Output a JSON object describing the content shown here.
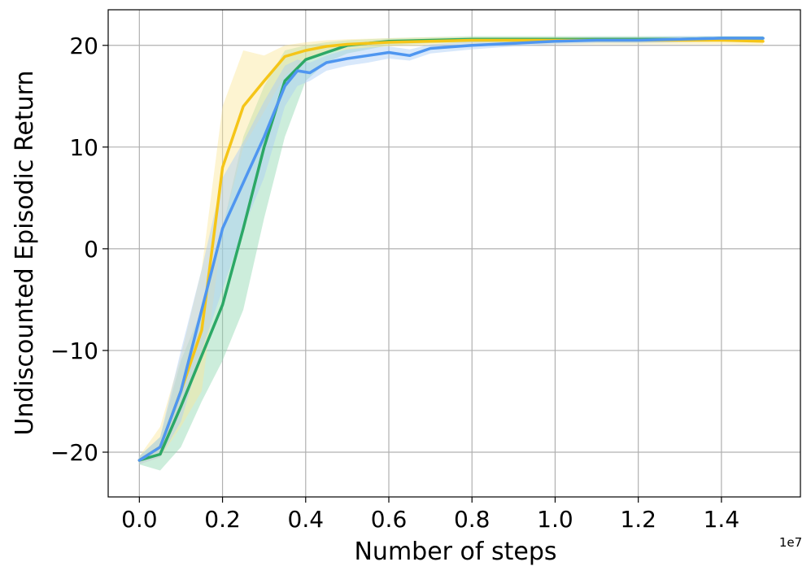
{
  "chart_data": {
    "type": "line",
    "title": "",
    "xlabel": "Number of steps",
    "ylabel": "Undiscounted Episodic Return",
    "x_offset_label": "1e7",
    "xlim": [
      -0.075,
      1.59
    ],
    "ylim": [
      -24.4,
      23.5
    ],
    "xticks": [
      0.0,
      0.2,
      0.4,
      0.6,
      0.8,
      1.0,
      1.2,
      1.4
    ],
    "xtick_labels": [
      "0.0",
      "0.2",
      "0.4",
      "0.6",
      "0.8",
      "1.0",
      "1.2",
      "1.4"
    ],
    "yticks": [
      -20,
      -10,
      0,
      10,
      20
    ],
    "ytick_labels": [
      "−20",
      "−10",
      "0",
      "10",
      "20"
    ],
    "grid": true,
    "legend": "none",
    "series": [
      {
        "color": "#2ca866",
        "band_color": "#8fd8b0",
        "x": [
          0.0,
          0.05,
          0.1,
          0.15,
          0.2,
          0.25,
          0.3,
          0.35,
          0.4,
          0.45,
          0.5,
          0.6,
          0.7,
          0.8,
          0.9,
          1.0,
          1.1,
          1.2,
          1.3,
          1.4,
          1.5
        ],
        "y": [
          -20.8,
          -20.2,
          -15.5,
          -10.5,
          -5.5,
          2.0,
          10.0,
          16.5,
          18.6,
          19.3,
          20.0,
          20.4,
          20.5,
          20.6,
          20.6,
          20.6,
          20.6,
          20.6,
          20.6,
          20.7,
          20.7
        ],
        "lower": [
          -21.2,
          -21.8,
          -19.5,
          -15.0,
          -11.0,
          -6.0,
          3.0,
          11.0,
          16.5,
          18.3,
          19.2,
          20.0,
          20.2,
          20.3,
          20.3,
          20.3,
          20.4,
          20.4,
          20.4,
          20.5,
          20.5
        ],
        "upper": [
          -20.4,
          -18.5,
          -11.0,
          -6.0,
          2.0,
          11.0,
          16.0,
          19.5,
          20.0,
          20.3,
          20.5,
          20.7,
          20.8,
          20.9,
          20.9,
          20.9,
          20.9,
          20.9,
          20.9,
          20.9,
          20.9
        ]
      },
      {
        "color": "#f5c518",
        "band_color": "#fbe79a",
        "x": [
          0.0,
          0.05,
          0.1,
          0.15,
          0.2,
          0.25,
          0.3,
          0.35,
          0.4,
          0.45,
          0.5,
          0.6,
          0.7,
          0.8,
          0.9,
          1.0,
          1.1,
          1.2,
          1.3,
          1.4,
          1.5
        ],
        "y": [
          -20.8,
          -19.5,
          -14.0,
          -8.0,
          8.0,
          14.0,
          16.5,
          18.9,
          19.5,
          19.9,
          20.1,
          20.3,
          20.4,
          20.5,
          20.5,
          20.5,
          20.5,
          20.5,
          20.5,
          20.5,
          20.4
        ],
        "lower": [
          -21.2,
          -20.5,
          -17.5,
          -14.0,
          2.0,
          10.0,
          13.5,
          17.0,
          18.5,
          19.3,
          19.6,
          19.9,
          20.0,
          20.1,
          20.1,
          20.1,
          20.1,
          20.1,
          20.1,
          20.1,
          20.0
        ],
        "upper": [
          -20.4,
          -17.5,
          -10.5,
          -2.0,
          14.0,
          19.5,
          19.0,
          20.0,
          20.3,
          20.5,
          20.6,
          20.7,
          20.8,
          20.8,
          20.8,
          20.8,
          20.8,
          20.8,
          20.8,
          20.8,
          20.8
        ]
      },
      {
        "color": "#4f96f0",
        "band_color": "#a9cdf7",
        "x": [
          0.0,
          0.05,
          0.1,
          0.15,
          0.2,
          0.25,
          0.3,
          0.35,
          0.38,
          0.41,
          0.45,
          0.5,
          0.55,
          0.6,
          0.65,
          0.7,
          0.8,
          0.9,
          1.0,
          1.1,
          1.2,
          1.3,
          1.4,
          1.5
        ],
        "y": [
          -20.8,
          -19.5,
          -14.0,
          -6.0,
          2.0,
          6.5,
          11.0,
          16.0,
          17.5,
          17.3,
          18.3,
          18.7,
          19.0,
          19.3,
          19.0,
          19.7,
          20.0,
          20.2,
          20.4,
          20.5,
          20.5,
          20.6,
          20.7,
          20.7
        ],
        "lower": [
          -21.2,
          -20.5,
          -17.0,
          -10.0,
          -4.0,
          2.0,
          7.0,
          14.0,
          16.0,
          16.5,
          17.5,
          18.0,
          18.3,
          18.7,
          18.5,
          19.2,
          19.6,
          19.9,
          20.1,
          20.2,
          20.2,
          20.3,
          20.4,
          20.4
        ],
        "upper": [
          -20.4,
          -18.5,
          -10.0,
          -2.0,
          7.0,
          10.5,
          14.5,
          18.0,
          18.6,
          18.3,
          19.0,
          19.6,
          19.8,
          19.9,
          19.6,
          20.1,
          20.4,
          20.5,
          20.7,
          20.8,
          20.8,
          20.9,
          20.9,
          20.9
        ]
      }
    ]
  }
}
